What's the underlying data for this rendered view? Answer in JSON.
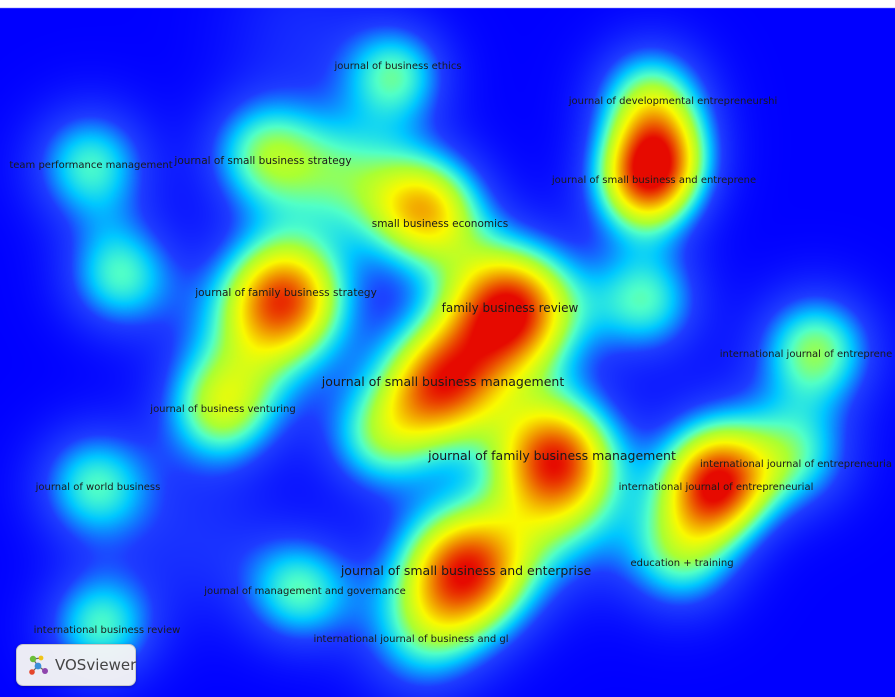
{
  "app_name": "VOSviewer",
  "view": "density visualization",
  "colors": {
    "low": "#0000ff",
    "mid_low": "#00ffff",
    "mid": "#adff2f",
    "mid_high": "#ffff00",
    "high": "#ff0000"
  },
  "labels": [
    {
      "id": "journal-of-business-ethics",
      "text": "journal of business ethics",
      "density": 0.45
    },
    {
      "id": "journal-of-developmental-entrepreneurship",
      "text": "journal of developmental entrepreneurshi",
      "density": 0.5
    },
    {
      "id": "team-performance-management",
      "text": "team performance management",
      "density": 0.45
    },
    {
      "id": "journal-of-small-business-strategy",
      "text": "journal of small business strategy",
      "density": 0.5
    },
    {
      "id": "journal-of-small-business-and-entrepreneurship",
      "text": "journal of small business and entreprene",
      "density": 0.65
    },
    {
      "id": "small-business-economics",
      "text": "small business economics",
      "density": 0.8
    },
    {
      "id": "journal-of-family-business-strategy",
      "text": "journal of family business strategy",
      "density": 0.85
    },
    {
      "id": "family-business-review",
      "text": "family business review",
      "density": 1.0
    },
    {
      "id": "international-journal-of-entrepreneurship-a",
      "text": "international journal of entreprene",
      "density": 0.5
    },
    {
      "id": "journal-of-small-business-management",
      "text": "journal of small business management",
      "density": 0.9
    },
    {
      "id": "journal-of-business-venturing",
      "text": "journal of business venturing",
      "density": 0.5
    },
    {
      "id": "journal-of-family-business-management",
      "text": "journal of family business management",
      "density": 0.85
    },
    {
      "id": "international-journal-of-entrepreneurial-b",
      "text": "international journal of entrepreneuria",
      "density": 0.5
    },
    {
      "id": "journal-of-world-business",
      "text": "journal of world business",
      "density": 0.45
    },
    {
      "id": "international-journal-of-entrepreneurial",
      "text": "international journal of entrepreneurial",
      "density": 0.6
    },
    {
      "id": "education-training",
      "text": "education + training",
      "density": 0.45
    },
    {
      "id": "journal-of-small-business-and-enterprise",
      "text": "journal of small business and enterprise",
      "density": 0.95
    },
    {
      "id": "journal-of-management-and-governance",
      "text": "journal of management and governance",
      "density": 0.45
    },
    {
      "id": "international-business-review",
      "text": "international business review",
      "density": 0.45
    },
    {
      "id": "international-journal-of-business-and-globalisation",
      "text": "international journal of business and gl",
      "density": 0.45
    }
  ]
}
